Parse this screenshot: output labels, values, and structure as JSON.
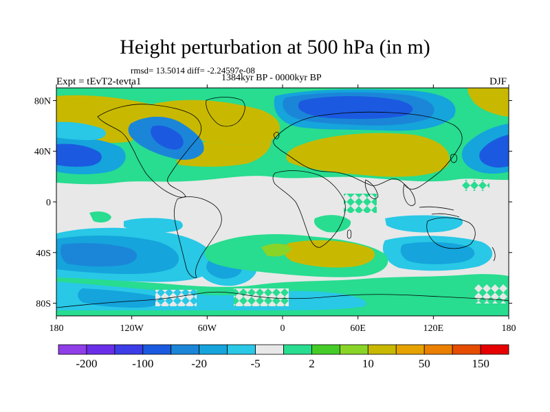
{
  "title": "Height perturbation at 500 hPa (in m)",
  "stats_text": "rmsd= 13.5014 diff= -2.24597e-08",
  "period_text": "1384kyr BP - 0000kyr BP",
  "experiment_text": "Expt = tEvT2-tevta1",
  "season_text": "DJF",
  "lat_ticks": [
    "80N",
    "40N",
    "0",
    "40S",
    "80S"
  ],
  "lon_ticks": [
    "180",
    "120W",
    "60W",
    "0",
    "60E",
    "120E",
    "180"
  ],
  "colorbar": {
    "colors": [
      "#8f3ee8",
      "#6a2ee8",
      "#3c3de6",
      "#1b5ae0",
      "#1b86d8",
      "#15a4dc",
      "#28c8e6",
      "#e8e8e8",
      "#28dc90",
      "#46cc28",
      "#8ad428",
      "#c8b900",
      "#e6a300",
      "#eb7f00",
      "#e64d00",
      "#e60000"
    ],
    "labels": [
      {
        "text": "-200",
        "after_box": 1
      },
      {
        "text": "-100",
        "after_box": 3
      },
      {
        "text": "-20",
        "after_box": 5
      },
      {
        "text": "-5",
        "after_box": 7
      },
      {
        "text": "2",
        "after_box": 9
      },
      {
        "text": "10",
        "after_box": 11
      },
      {
        "text": "50",
        "after_box": 13
      },
      {
        "text": "150",
        "after_box": 15
      }
    ]
  }
}
